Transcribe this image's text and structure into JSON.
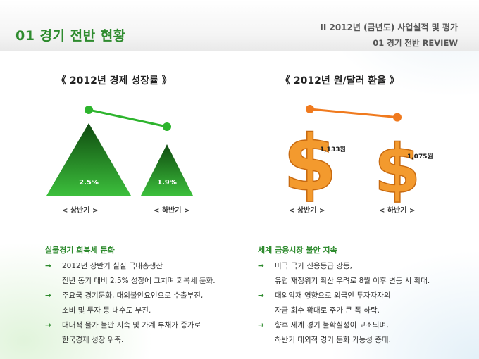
{
  "header": {
    "page_title": "01  경기 전반 현황",
    "breadcrumb_section": "II   2012년 (금년도) 사업실적 및 평가",
    "breadcrumb_sub": "01  경기 전반 REVIEW"
  },
  "left_panel": {
    "title": "《  2012년 경제 성장률  》",
    "chart_data": {
      "type": "line",
      "categories": [
        "< 상반기 >",
        "< 하반기 >"
      ],
      "values": [
        2.5,
        1.9
      ],
      "value_labels": [
        "2.5%",
        "1.9%"
      ],
      "colors": {
        "line": "#2db42d",
        "marker": "#2db42d",
        "triangle_dark": "#0f4a0f",
        "triangle_light": "#3cbf3c"
      }
    }
  },
  "right_panel": {
    "title": "《  2012년 원/달러 환율  》",
    "chart_data": {
      "type": "line",
      "categories": [
        "< 상반기 >",
        "< 하반기 >"
      ],
      "values": [
        1133,
        1075
      ],
      "value_labels": [
        "1,133원",
        "1,075원"
      ],
      "colors": {
        "line": "#f07a1e",
        "marker": "#f07a1e",
        "dollar": "#f39a2e"
      }
    }
  },
  "left_text": {
    "heading": "실물경기 회복세 둔화",
    "bullets": [
      {
        "lines": [
          "2012년 상반기 실질 국내총생산",
          "전년 동기 대비 2.5% 성장에 그치며 회복세 둔화."
        ]
      },
      {
        "lines": [
          "주요국 경기둔화, 대외불안요인으로 수출부진,",
          "소비 및 투자 등 내수도 부진."
        ]
      },
      {
        "lines": [
          "대내적 물가 불안 지속 및 가계 부채가 증가로",
          "한국경제 성장 위축."
        ]
      }
    ]
  },
  "right_text": {
    "heading": "세계 금융시장 불안 지속",
    "bullets": [
      {
        "lines": [
          "미국 국가 신용등급 강등,",
          "유럽 재정위기 확산 우려로 8월 이후 변동 시 확대."
        ]
      },
      {
        "lines": [
          "대외악재 영향으로 외국인 투자자자의",
          "자금 회수 확대로 주가 큰 폭 하락."
        ]
      },
      {
        "lines": [
          "향후 세계 경기 불확실성이 고조되며,",
          "하반기 대외적 경기 둔화 가능성 증대."
        ]
      }
    ]
  },
  "icons": {
    "bullet": "→",
    "dollar": "$"
  }
}
